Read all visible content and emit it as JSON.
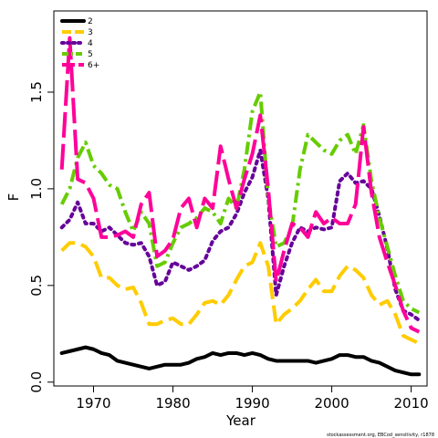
{
  "chart_data": {
    "type": "line",
    "title": "",
    "xlabel": "Year",
    "ylabel": "F",
    "xlim": [
      1965,
      2012
    ],
    "ylim": [
      -0.02,
      1.92
    ],
    "xticks": [
      1970,
      1980,
      1990,
      2000,
      2010
    ],
    "xtick_labels": [
      "1970",
      "1980",
      "1990",
      "2000",
      "2010"
    ],
    "yticks": [
      0.0,
      0.5,
      1.0,
      1.5
    ],
    "ytick_labels": [
      "0.0",
      "0.5",
      "1.0",
      "1.5"
    ],
    "grid": false,
    "legend_position": "top-left",
    "x": [
      1966,
      1967,
      1968,
      1969,
      1970,
      1971,
      1972,
      1973,
      1974,
      1975,
      1976,
      1977,
      1978,
      1979,
      1980,
      1981,
      1982,
      1983,
      1984,
      1985,
      1986,
      1987,
      1988,
      1989,
      1990,
      1991,
      1992,
      1993,
      1994,
      1995,
      1996,
      1997,
      1998,
      1999,
      2000,
      2001,
      2002,
      2003,
      2004,
      2005,
      2006,
      2007,
      2008,
      2009,
      2010,
      2011
    ],
    "series": [
      {
        "name": "2",
        "color": "#000000",
        "dash": "solid",
        "width": 4,
        "values": [
          0.15,
          0.16,
          0.17,
          0.18,
          0.17,
          0.15,
          0.14,
          0.11,
          0.1,
          0.09,
          0.08,
          0.07,
          0.08,
          0.09,
          0.09,
          0.09,
          0.1,
          0.12,
          0.13,
          0.15,
          0.14,
          0.15,
          0.15,
          0.14,
          0.15,
          0.14,
          0.12,
          0.11,
          0.11,
          0.11,
          0.11,
          0.11,
          0.1,
          0.11,
          0.12,
          0.14,
          0.14,
          0.13,
          0.13,
          0.11,
          0.1,
          0.08,
          0.06,
          0.05,
          0.04,
          0.04
        ]
      },
      {
        "name": "3",
        "color": "#FFCC00",
        "dash": "long",
        "width": 4,
        "values": [
          0.68,
          0.72,
          0.72,
          0.7,
          0.65,
          0.54,
          0.54,
          0.5,
          0.48,
          0.49,
          0.41,
          0.3,
          0.3,
          0.32,
          0.33,
          0.3,
          0.3,
          0.35,
          0.41,
          0.42,
          0.4,
          0.45,
          0.53,
          0.6,
          0.62,
          0.72,
          0.6,
          0.3,
          0.35,
          0.38,
          0.42,
          0.48,
          0.53,
          0.47,
          0.47,
          0.55,
          0.6,
          0.58,
          0.54,
          0.45,
          0.4,
          0.42,
          0.35,
          0.24,
          0.22,
          0.2
        ]
      },
      {
        "name": "4",
        "color": "#660099",
        "dash": "dot",
        "width": 4,
        "values": [
          0.8,
          0.84,
          0.93,
          0.82,
          0.82,
          0.78,
          0.8,
          0.76,
          0.72,
          0.71,
          0.72,
          0.65,
          0.5,
          0.52,
          0.62,
          0.6,
          0.58,
          0.6,
          0.63,
          0.73,
          0.78,
          0.8,
          0.87,
          0.98,
          1.06,
          1.2,
          0.95,
          0.45,
          0.6,
          0.72,
          0.8,
          0.78,
          0.8,
          0.79,
          0.8,
          1.04,
          1.08,
          1.03,
          1.04,
          1.0,
          0.86,
          0.69,
          0.48,
          0.37,
          0.35,
          0.32
        ]
      },
      {
        "name": "5",
        "color": "#66CC00",
        "dash": "dashdot",
        "width": 4,
        "values": [
          0.92,
          1.0,
          1.16,
          1.24,
          1.12,
          1.08,
          1.02,
          1.0,
          0.88,
          0.78,
          0.88,
          0.82,
          0.6,
          0.62,
          0.72,
          0.8,
          0.82,
          0.85,
          0.9,
          0.88,
          0.82,
          0.95,
          0.9,
          1.1,
          1.4,
          1.5,
          0.95,
          0.7,
          0.72,
          0.8,
          1.1,
          1.28,
          1.24,
          1.2,
          1.18,
          1.25,
          1.28,
          1.18,
          1.33,
          1.04,
          0.85,
          0.7,
          0.55,
          0.42,
          0.38,
          0.36
        ]
      },
      {
        "name": "6+",
        "color": "#FF0099",
        "dash": "longer",
        "width": 4,
        "values": [
          1.1,
          1.78,
          1.05,
          1.03,
          0.95,
          0.75,
          0.75,
          0.76,
          0.78,
          0.75,
          0.92,
          0.98,
          0.65,
          0.68,
          0.74,
          0.9,
          0.95,
          0.8,
          0.95,
          0.9,
          1.22,
          1.05,
          0.9,
          1.05,
          1.18,
          1.38,
          1.0,
          0.52,
          0.68,
          0.82,
          0.8,
          0.75,
          0.88,
          0.82,
          0.85,
          0.82,
          0.82,
          0.92,
          1.32,
          0.98,
          0.75,
          0.62,
          0.5,
          0.37,
          0.28,
          0.26
        ]
      }
    ]
  },
  "footer_text": "stockassessment.org, EBCod_sensitivity, r1878"
}
